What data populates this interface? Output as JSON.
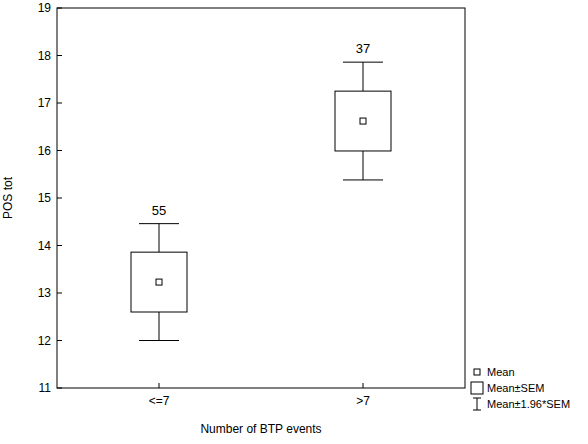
{
  "chart_data": {
    "type": "box",
    "x_label": "Number of BTP events",
    "y_label": "POS tot",
    "categories": [
      "<=7",
      ">7"
    ],
    "values": [
      13.23,
      16.62
    ],
    "sem": [
      0.63,
      0.63
    ],
    "ci": [
      1.23,
      1.24
    ],
    "counts": [
      55,
      37
    ],
    "legend_labels": [
      "Mean",
      "Mean±SEM",
      "Mean±1.96*SEM"
    ],
    "legend": "bottom-right",
    "ylim": [
      11,
      19
    ],
    "yticks": [
      11,
      12,
      13,
      14,
      15,
      16,
      17,
      18,
      19
    ],
    "grid": false,
    "color": "#000000"
  }
}
